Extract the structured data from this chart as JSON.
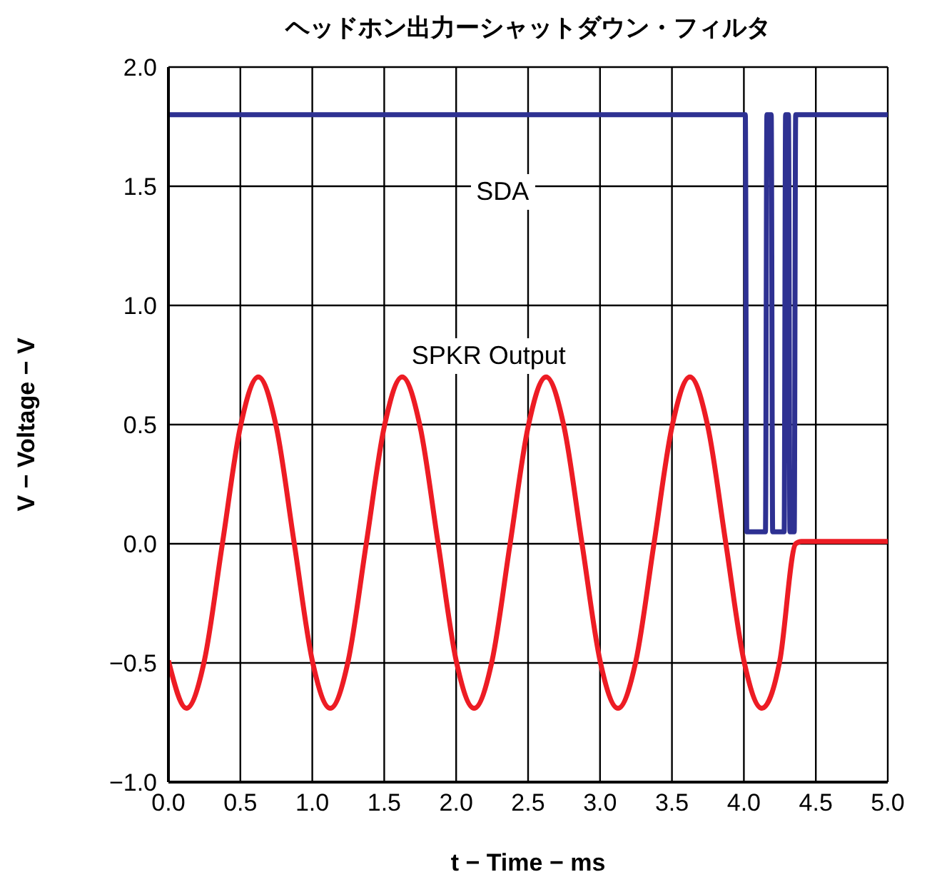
{
  "chart_data": {
    "type": "line",
    "title": "ヘッドホン出力ーシャットダウン・フィルタ",
    "xlabel": "t − Time − ms",
    "ylabel": "V − Voltage − V",
    "xlim": [
      0,
      5
    ],
    "xticks": [
      {
        "value": 0,
        "label": "0.0"
      },
      {
        "value": 0.5,
        "label": "0.5"
      },
      {
        "value": 1,
        "label": "1.0"
      },
      {
        "value": 1.5,
        "label": "1.5"
      },
      {
        "value": 2,
        "label": "2.0"
      },
      {
        "value": 2.5,
        "label": "2.5"
      },
      {
        "value": 3,
        "label": "3.0"
      },
      {
        "value": 3.5,
        "label": "3.5"
      },
      {
        "value": 4,
        "label": "4.0"
      },
      {
        "value": 4.5,
        "label": "4.5"
      },
      {
        "value": 5,
        "label": "5.0"
      }
    ],
    "ylim": [
      -1,
      2
    ],
    "yticks": [
      {
        "value": -1,
        "label": "−1.0"
      },
      {
        "value": -0.5,
        "label": "−0.5"
      },
      {
        "value": 0,
        "label": "0.0"
      },
      {
        "value": 0.5,
        "label": "0.5"
      },
      {
        "value": 1,
        "label": "1.0"
      },
      {
        "value": 1.5,
        "label": "1.5"
      },
      {
        "value": 2,
        "label": "2.0"
      }
    ],
    "grid": true,
    "marker": "none",
    "line_style": "solid",
    "series": [
      {
        "name": "SDA",
        "color": "#2e3192",
        "x": [
          0,
          1,
          2,
          3,
          4.01,
          4.02,
          4.15,
          4.16,
          4.19,
          4.2,
          4.28,
          4.29,
          4.31,
          4.32,
          4.35,
          4.36,
          5
        ],
        "values": [
          1.8,
          1.8,
          1.8,
          1.8,
          1.8,
          0.05,
          0.05,
          1.8,
          1.8,
          0.05,
          0.05,
          1.8,
          1.8,
          0.05,
          0.05,
          1.8,
          1.8
        ]
      },
      {
        "name": "SPKR Output",
        "color": "#ed1c24",
        "x": [
          0,
          0.125,
          0.25,
          0.375,
          0.5,
          0.625,
          0.75,
          0.875,
          1,
          1.125,
          1.25,
          1.375,
          1.5,
          1.625,
          1.75,
          1.875,
          2,
          2.125,
          2.25,
          2.375,
          2.5,
          2.625,
          2.75,
          2.875,
          3,
          3.125,
          3.25,
          3.375,
          3.5,
          3.625,
          3.75,
          3.875,
          4,
          4.125,
          4.25,
          4.36,
          4.4,
          5
        ],
        "values": [
          -0.49,
          -0.69,
          -0.49,
          0,
          0.49,
          0.7,
          0.49,
          0,
          -0.49,
          -0.69,
          -0.49,
          0,
          0.49,
          0.7,
          0.49,
          0,
          -0.49,
          -0.69,
          -0.49,
          0,
          0.49,
          0.7,
          0.49,
          0,
          -0.49,
          -0.69,
          -0.49,
          0,
          0.49,
          0.7,
          0.49,
          0,
          -0.49,
          -0.69,
          -0.49,
          0,
          0.01,
          0.01
        ]
      }
    ]
  }
}
